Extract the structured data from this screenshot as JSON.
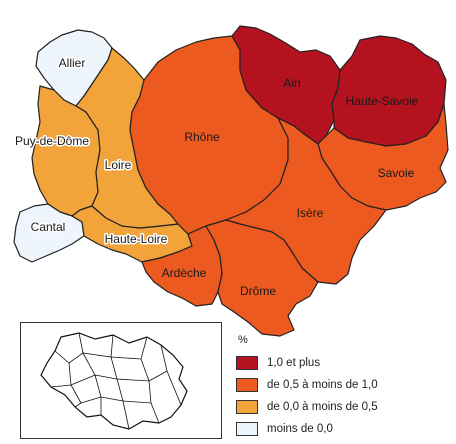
{
  "colors": {
    "cat1": "#b3121e",
    "cat2": "#ec5a20",
    "cat3": "#f2a33a",
    "cat4": "#eef5fc",
    "outline": "#222222"
  },
  "departments": [
    {
      "name": "Allier",
      "category": "cat4"
    },
    {
      "name": "Puy-de-Dôme",
      "category": "cat3"
    },
    {
      "name": "Cantal",
      "category": "cat4"
    },
    {
      "name": "Haute-Loire",
      "category": "cat3"
    },
    {
      "name": "Loire",
      "category": "cat3"
    },
    {
      "name": "Rhône",
      "category": "cat2"
    },
    {
      "name": "Ain",
      "category": "cat1"
    },
    {
      "name": "Haute-Savoie",
      "category": "cat1"
    },
    {
      "name": "Savoie",
      "category": "cat2"
    },
    {
      "name": "Isère",
      "category": "cat2"
    },
    {
      "name": "Ardèche",
      "category": "cat2"
    },
    {
      "name": "Drôme",
      "category": "cat2"
    }
  ],
  "legend": {
    "unit": "%",
    "items": [
      {
        "label": "1,0 et plus",
        "category": "cat1"
      },
      {
        "label": "de 0,5 à moins de 1,0",
        "category": "cat2"
      },
      {
        "label": "de 0,0 à moins de 0,5",
        "category": "cat3"
      },
      {
        "label": "moins de 0,0",
        "category": "cat4"
      }
    ]
  }
}
